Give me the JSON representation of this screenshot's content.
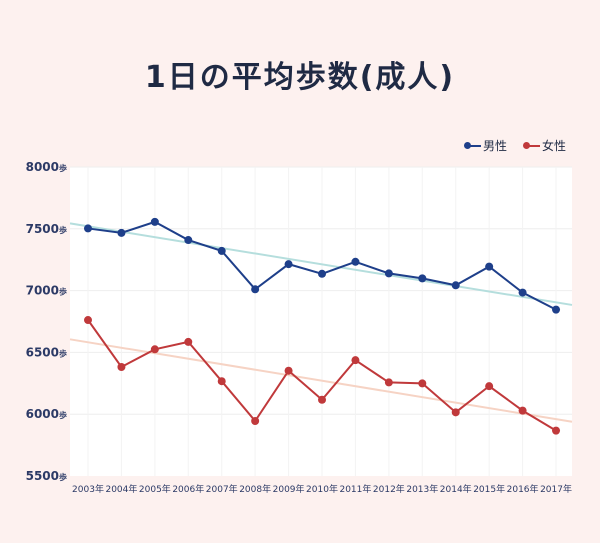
{
  "title": "1日の平均歩数(成人)",
  "legend": [
    {
      "label": "男性",
      "color": "#1e3f8a"
    },
    {
      "label": "女性",
      "color": "#c0393b"
    }
  ],
  "chart_data": {
    "type": "line",
    "title": "1日の平均歩数(成人)",
    "categories": [
      "2003年",
      "2004年",
      "2005年",
      "2006年",
      "2007年",
      "2008年",
      "2009年",
      "2010年",
      "2011年",
      "2012年",
      "2013年",
      "2014年",
      "2015年",
      "2016年",
      "2017年"
    ],
    "y_unit": "歩",
    "ylim": [
      5500,
      8000
    ],
    "yticks": [
      5500,
      6000,
      6500,
      7000,
      7500,
      8000
    ],
    "grid": true,
    "legend_position": "top-right",
    "series": [
      {
        "name": "男性",
        "color": "#1e3f8a",
        "values": [
          7503,
          7467,
          7556,
          7409,
          7321,
          7011,
          7214,
          7136,
          7233,
          7139,
          7099,
          7043,
          7194,
          6984,
          6846
        ],
        "trend": {
          "color": "#b5dedd",
          "start": 7520,
          "end": 6905
        }
      },
      {
        "name": "女性",
        "color": "#c0393b",
        "values": [
          6762,
          6382,
          6525,
          6585,
          6267,
          5945,
          6352,
          6117,
          6437,
          6257,
          6249,
          6015,
          6227,
          6029,
          5867
        ],
        "trend": {
          "color": "#f6d3c4",
          "start": 6582,
          "end": 5960
        }
      }
    ]
  }
}
